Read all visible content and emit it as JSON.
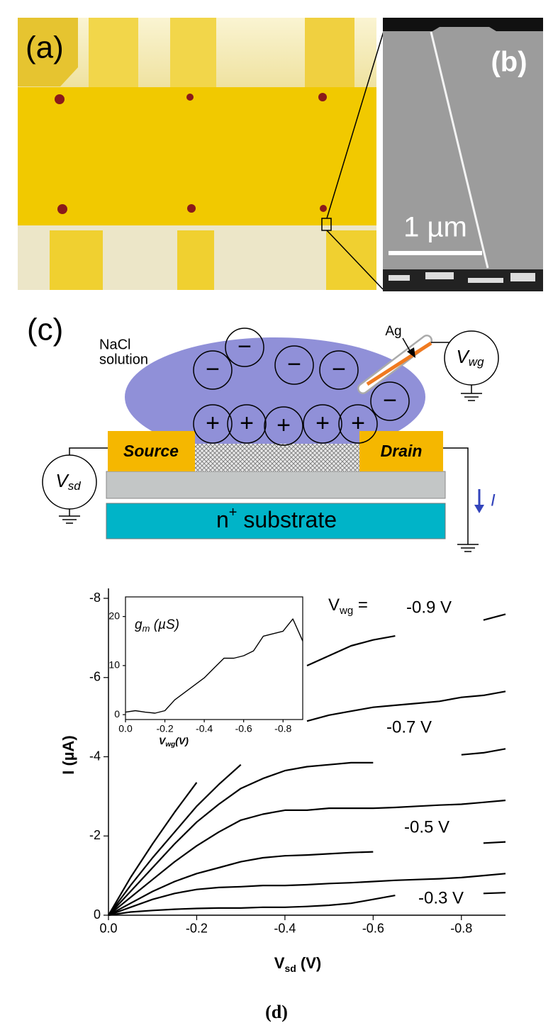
{
  "panels": {
    "a": {
      "label": "(a)"
    },
    "b": {
      "label": "(b)",
      "scale_bar": "1 µm"
    },
    "c": {
      "label": "(c)",
      "solution": [
        "NaCl",
        "solution"
      ],
      "electrode": "Ag",
      "gate_voltage": {
        "symbol": "V",
        "subscript": "wg"
      },
      "source": "Source",
      "drain": "Drain",
      "bias_voltage": {
        "symbol": "V",
        "subscript": "sd"
      },
      "current": "I",
      "substrate": {
        "base": "n",
        "superscript": "+",
        "rest": " substrate"
      },
      "ions": [
        "−",
        "−",
        "−",
        "−",
        "−",
        "+",
        "+",
        "+",
        "+",
        "+"
      ]
    }
  },
  "chart_data": [
    {
      "type": "line",
      "x": [
        0,
        -0.05,
        -0.1,
        -0.15,
        -0.2,
        -0.25,
        -0.3,
        -0.35,
        -0.4,
        -0.45,
        -0.5,
        -0.55,
        -0.6,
        -0.65,
        -0.7,
        -0.75,
        -0.8,
        -0.85,
        -0.9
      ],
      "xlim": [
        0,
        -0.9
      ],
      "ylim": [
        0,
        -8
      ],
      "xticks": [
        {
          "value": 0,
          "label": "0.0"
        },
        -0.2,
        -0.4,
        -0.6,
        -0.8
      ],
      "yticks": [
        0,
        -2,
        -4,
        -6,
        -8
      ],
      "x_label": {
        "symbol": "V",
        "subscript": "sd",
        "unit": " (V)"
      },
      "y_label": "I (µA)",
      "annotation": {
        "symbol": "V",
        "subscript": "wg",
        "rest": " ="
      },
      "series": [
        {
          "name": "-0.9 V",
          "color": "#000000",
          "values": [
            0,
            -0.95,
            -1.8,
            -2.6,
            -3.35,
            null,
            null,
            null,
            null,
            -6.3,
            -6.55,
            -6.8,
            -6.95,
            -7.05,
            null,
            null,
            null,
            -7.45,
            -7.6
          ]
        },
        {
          "color": "#000000",
          "values": [
            0,
            -0.75,
            -1.45,
            -2.1,
            -2.75,
            -3.3,
            -3.8,
            null,
            null,
            -4.9,
            -5.05,
            -5.15,
            -5.25,
            -5.3,
            -5.35,
            -5.4,
            -5.5,
            -5.55,
            -5.65
          ]
        },
        {
          "name": "-0.7 V",
          "color": "#000000",
          "values": [
            0,
            -0.6,
            -1.2,
            -1.8,
            -2.35,
            -2.8,
            -3.2,
            -3.45,
            -3.65,
            -3.75,
            -3.8,
            -3.85,
            -3.85,
            null,
            null,
            null,
            -4.05,
            -4.1,
            -4.2
          ]
        },
        {
          "color": "#000000",
          "values": [
            0,
            -0.45,
            -0.9,
            -1.35,
            -1.75,
            -2.1,
            -2.4,
            -2.55,
            -2.65,
            -2.65,
            -2.7,
            -2.7,
            -2.7,
            -2.72,
            -2.75,
            -2.78,
            -2.8,
            -2.85,
            -2.9
          ]
        },
        {
          "name": "-0.5 V",
          "color": "#000000",
          "values": [
            0,
            -0.3,
            -0.6,
            -0.85,
            -1.05,
            -1.2,
            -1.35,
            -1.45,
            -1.5,
            -1.52,
            -1.55,
            -1.58,
            -1.6,
            null,
            null,
            null,
            null,
            -1.82,
            -1.85
          ]
        },
        {
          "color": "#000000",
          "values": [
            0,
            -0.2,
            -0.4,
            -0.55,
            -0.65,
            -0.7,
            -0.72,
            -0.75,
            -0.75,
            -0.77,
            -0.8,
            -0.82,
            -0.85,
            -0.88,
            -0.9,
            -0.92,
            -0.95,
            -1.0,
            -1.05
          ]
        },
        {
          "name": "-0.3 V",
          "color": "#000000",
          "values": [
            0,
            -0.08,
            -0.12,
            -0.15,
            -0.17,
            -0.18,
            -0.18,
            -0.2,
            -0.2,
            -0.22,
            -0.25,
            -0.3,
            -0.4,
            -0.5,
            null,
            null,
            null,
            -0.55,
            -0.57
          ]
        }
      ]
    },
    {
      "type": "line",
      "title": {
        "symbol": "g",
        "subscript": "m",
        "unit": " (µS)"
      },
      "x": [
        0,
        -0.05,
        -0.1,
        -0.15,
        -0.2,
        -0.25,
        -0.3,
        -0.35,
        -0.4,
        -0.45,
        -0.5,
        -0.55,
        -0.6,
        -0.65,
        -0.7,
        -0.75,
        -0.8,
        -0.85,
        -0.9
      ],
      "xlim": [
        0,
        -0.9
      ],
      "ylim": [
        -1,
        24
      ],
      "xticks": [
        {
          "value": 0,
          "label": "0.0"
        },
        -0.2,
        -0.4,
        -0.6,
        -0.8
      ],
      "yticks": [
        0,
        10,
        20
      ],
      "x_label": {
        "symbol": "V",
        "subscript": "wg",
        "unit": "(V)"
      },
      "series": [
        {
          "color": "#000000",
          "values": [
            0.5,
            0.8,
            0.5,
            0.3,
            0.8,
            3,
            4.5,
            6,
            7.5,
            9.5,
            11.5,
            11.5,
            12,
            13,
            16,
            16.5,
            17,
            19.5,
            15
          ]
        }
      ]
    }
  ],
  "caption": "(d)"
}
